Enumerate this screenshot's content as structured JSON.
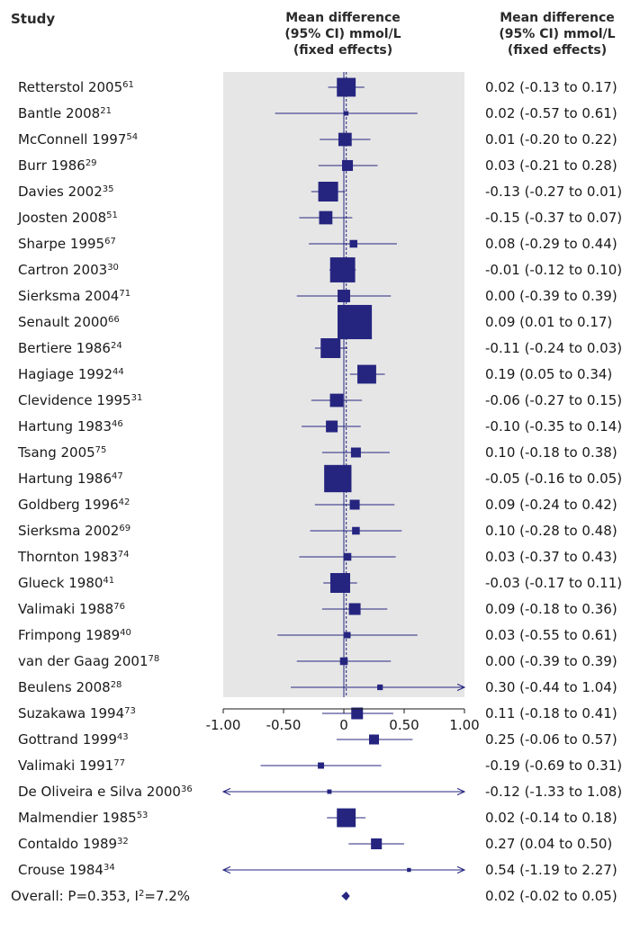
{
  "headers": {
    "study": "Study",
    "plot": [
      "Mean difference",
      "(95% CI) mmol/L",
      "(fixed effects)"
    ],
    "ci": [
      "Mean difference",
      "(95% CI) mmol/L",
      "(fixed effects)"
    ]
  },
  "colors": {
    "marker": "#252580",
    "panel": "#e6e6e6",
    "line": "#252580",
    "text": "#1a1a1a"
  },
  "chart_data": {
    "type": "forest",
    "xlim": [
      -1.0,
      1.0
    ],
    "xticks": [
      -1.0,
      -0.5,
      0,
      0.5,
      1.0
    ],
    "xtick_labels": [
      "-1.00",
      "-0.50",
      "0",
      "0.50",
      "1.00"
    ],
    "reference_line": 0,
    "pooled_line": 0.02,
    "studies": [
      {
        "name": "Retterstol 2005",
        "ref": "61",
        "mean": 0.02,
        "low": -0.13,
        "high": 0.17,
        "weight": 0.9,
        "ci_text": "0.02 (-0.13 to 0.17)"
      },
      {
        "name": "Bantle 2008",
        "ref": "21",
        "mean": 0.02,
        "low": -0.57,
        "high": 0.61,
        "weight": 0.05,
        "ci_text": "0.02 (-0.57 to 0.61)"
      },
      {
        "name": "McConnell 1997",
        "ref": "54",
        "mean": 0.01,
        "low": -0.2,
        "high": 0.22,
        "weight": 0.45,
        "ci_text": "0.01 (-0.20 to 0.22)"
      },
      {
        "name": "Burr 1986",
        "ref": "29",
        "mean": 0.03,
        "low": -0.21,
        "high": 0.28,
        "weight": 0.3,
        "ci_text": "0.03 (-0.21 to 0.28)"
      },
      {
        "name": "Davies 2002",
        "ref": "35",
        "mean": -0.13,
        "low": -0.27,
        "high": 0.01,
        "weight": 1.0,
        "ci_text": "-0.13 (-0.27 to 0.01)"
      },
      {
        "name": "Joosten 2008",
        "ref": "51",
        "mean": -0.15,
        "low": -0.37,
        "high": 0.07,
        "weight": 0.45,
        "ci_text": "-0.15 (-0.37 to 0.07)"
      },
      {
        "name": "Sharpe 1995",
        "ref": "67",
        "mean": 0.08,
        "low": -0.29,
        "high": 0.44,
        "weight": 0.15,
        "ci_text": "0.08 (-0.29 to 0.44)"
      },
      {
        "name": "Cartron 2003",
        "ref": "30",
        "mean": -0.01,
        "low": -0.12,
        "high": 0.1,
        "weight": 1.6,
        "ci_text": "-0.01 (-0.12 to 0.10)"
      },
      {
        "name": "Sierksma 2004",
        "ref": "71",
        "mean": 0.0,
        "low": -0.39,
        "high": 0.39,
        "weight": 0.4,
        "ci_text": "0.00 (-0.39 to 0.39)"
      },
      {
        "name": "Senault 2000",
        "ref": "66",
        "mean": 0.09,
        "low": 0.01,
        "high": 0.17,
        "weight": 3.0,
        "ci_text": "0.09 (0.01 to 0.17)"
      },
      {
        "name": "Bertiere 1986",
        "ref": "24",
        "mean": -0.11,
        "low": -0.24,
        "high": 0.03,
        "weight": 1.0,
        "ci_text": "-0.11 (-0.24 to 0.03)"
      },
      {
        "name": "Hagiage 1992",
        "ref": "44",
        "mean": 0.19,
        "low": 0.05,
        "high": 0.34,
        "weight": 0.9,
        "ci_text": "0.19 (0.05 to 0.34)"
      },
      {
        "name": "Clevidence 1995",
        "ref": "31",
        "mean": -0.06,
        "low": -0.27,
        "high": 0.15,
        "weight": 0.45,
        "ci_text": "-0.06 (-0.27 to 0.15)"
      },
      {
        "name": "Hartung 1983",
        "ref": "46",
        "mean": -0.1,
        "low": -0.35,
        "high": 0.14,
        "weight": 0.35,
        "ci_text": "-0.10 (-0.35 to 0.14)"
      },
      {
        "name": "Tsang 2005",
        "ref": "75",
        "mean": 0.1,
        "low": -0.18,
        "high": 0.38,
        "weight": 0.25,
        "ci_text": "0.10 (-0.18 to 0.38)"
      },
      {
        "name": "Hartung 1986",
        "ref": "47",
        "mean": -0.05,
        "low": -0.16,
        "high": 0.05,
        "weight": 1.9,
        "ci_text": "-0.05 (-0.16 to 0.05)"
      },
      {
        "name": "Goldberg 1996",
        "ref": "42",
        "mean": 0.09,
        "low": -0.24,
        "high": 0.42,
        "weight": 0.25,
        "ci_text": "0.09 (-0.24 to 0.42)"
      },
      {
        "name": "Sierksma 2002",
        "ref": "69",
        "mean": 0.1,
        "low": -0.28,
        "high": 0.48,
        "weight": 0.15,
        "ci_text": "0.10 (-0.28 to 0.48)"
      },
      {
        "name": "Thornton 1983",
        "ref": "74",
        "mean": 0.03,
        "low": -0.37,
        "high": 0.43,
        "weight": 0.15,
        "ci_text": "0.03 (-0.37 to 0.43)"
      },
      {
        "name": "Glueck 1980",
        "ref": "41",
        "mean": -0.03,
        "low": -0.17,
        "high": 0.11,
        "weight": 1.0,
        "ci_text": "-0.03 (-0.17 to 0.11)"
      },
      {
        "name": "Valimaki 1988",
        "ref": "76",
        "mean": 0.09,
        "low": -0.18,
        "high": 0.36,
        "weight": 0.35,
        "ci_text": "0.09 (-0.18 to 0.36)"
      },
      {
        "name": "Frimpong 1989",
        "ref": "40",
        "mean": 0.03,
        "low": -0.55,
        "high": 0.61,
        "weight": 0.1,
        "ci_text": "0.03 (-0.55 to 0.61)"
      },
      {
        "name": "van der Gaag 2001",
        "ref": "78",
        "mean": 0.0,
        "low": -0.39,
        "high": 0.39,
        "weight": 0.15,
        "ci_text": "0.00 (-0.39 to 0.39)"
      },
      {
        "name": "Beulens 2008",
        "ref": "28",
        "mean": 0.3,
        "low": -0.44,
        "high": 1.04,
        "weight": 0.08,
        "ci_text": "0.30 (-0.44 to 1.04)"
      },
      {
        "name": "Suzakawa 1994",
        "ref": "73",
        "mean": 0.11,
        "low": -0.18,
        "high": 0.41,
        "weight": 0.35,
        "ci_text": "0.11 (-0.18 to 0.41)"
      },
      {
        "name": "Gottrand 1999",
        "ref": "43",
        "mean": 0.25,
        "low": -0.06,
        "high": 0.57,
        "weight": 0.25,
        "ci_text": "0.25 (-0.06 to 0.57)"
      },
      {
        "name": "Valimaki 1991",
        "ref": "77",
        "mean": -0.19,
        "low": -0.69,
        "high": 0.31,
        "weight": 0.1,
        "ci_text": "-0.19 (-0.69 to 0.31)"
      },
      {
        "name": "De Oliveira e Silva 2000",
        "ref": "36",
        "mean": -0.12,
        "low": -1.33,
        "high": 1.08,
        "weight": 0.05,
        "ci_text": "-0.12 (-1.33 to 1.08)"
      },
      {
        "name": "Malmendier 1985",
        "ref": "53",
        "mean": 0.02,
        "low": -0.14,
        "high": 0.18,
        "weight": 0.9,
        "ci_text": "0.02 (-0.14 to 0.18)"
      },
      {
        "name": "Contaldo 1989",
        "ref": "32",
        "mean": 0.27,
        "low": 0.04,
        "high": 0.5,
        "weight": 0.3,
        "ci_text": "0.27 (0.04 to 0.50)"
      },
      {
        "name": "Crouse 1984",
        "ref": "34",
        "mean": 0.54,
        "low": -1.19,
        "high": 2.27,
        "weight": 0.04,
        "ci_text": "0.54 (-1.19 to 2.27)"
      }
    ],
    "overall": {
      "label": "Overall: P=0.353, I",
      "label_sup": "2",
      "label_tail": "=7.2%",
      "mean": 0.02,
      "low": -0.02,
      "high": 0.05,
      "ci_text": "0.02 (-0.02 to 0.05)"
    }
  }
}
